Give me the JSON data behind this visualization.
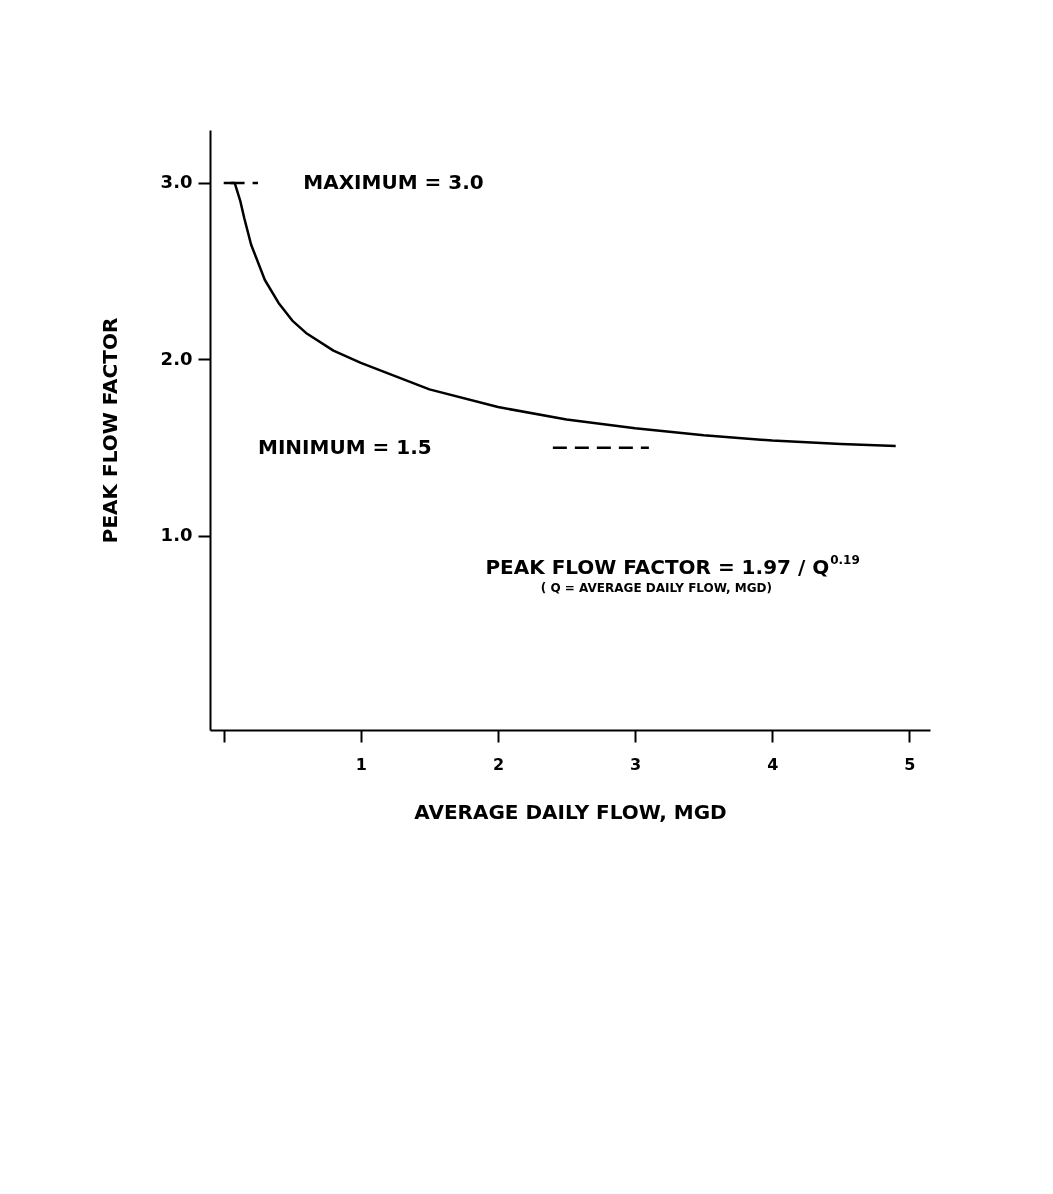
{
  "chart_data": {
    "type": "line",
    "xlabel": "AVERAGE DAILY FLOW, MGD",
    "ylabel": "PEAK FLOW FACTOR",
    "xlim": [
      -0.1,
      5.15
    ],
    "ylim": [
      -0.1,
      3.3
    ],
    "xticks": [
      {
        "value": 0,
        "label": null
      },
      1,
      2,
      3,
      4,
      5
    ],
    "yticks": [
      {
        "value": 1,
        "label": "1.0"
      },
      {
        "value": 2,
        "label": "2.0"
      },
      {
        "value": 3,
        "label": "3.0"
      }
    ],
    "grid": false,
    "marker": "none",
    "series": [
      {
        "color": "#000000",
        "line_style": "solid",
        "x": [
          0.0,
          0.08,
          0.12,
          0.15,
          0.2,
          0.3,
          0.4,
          0.5,
          0.6,
          0.8,
          1.0,
          1.5,
          2.0,
          2.5,
          3.0,
          3.5,
          4.0,
          4.5,
          4.9
        ],
        "values": [
          3.0,
          3.0,
          2.9,
          2.8,
          2.65,
          2.45,
          2.32,
          2.22,
          2.15,
          2.05,
          1.98,
          1.83,
          1.73,
          1.66,
          1.61,
          1.57,
          1.54,
          1.52,
          1.51
        ]
      },
      {
        "color": "#000000",
        "line_style": "dashed",
        "x": [
          0.05,
          0.25
        ],
        "values": [
          3.0,
          3.0
        ]
      },
      {
        "color": "#000000",
        "line_style": "dashed",
        "x": [
          2.4,
          3.1
        ],
        "values": [
          1.5,
          1.5
        ]
      }
    ],
    "annotations": [
      "MAXIMUM = 3.0",
      "MINIMUM = 1.5",
      "PEAK FLOW FACTOR = 1.97 / Q$^{0.19}$",
      "( Q = AVERAGE DAILY FLOW, MGD)"
    ]
  }
}
